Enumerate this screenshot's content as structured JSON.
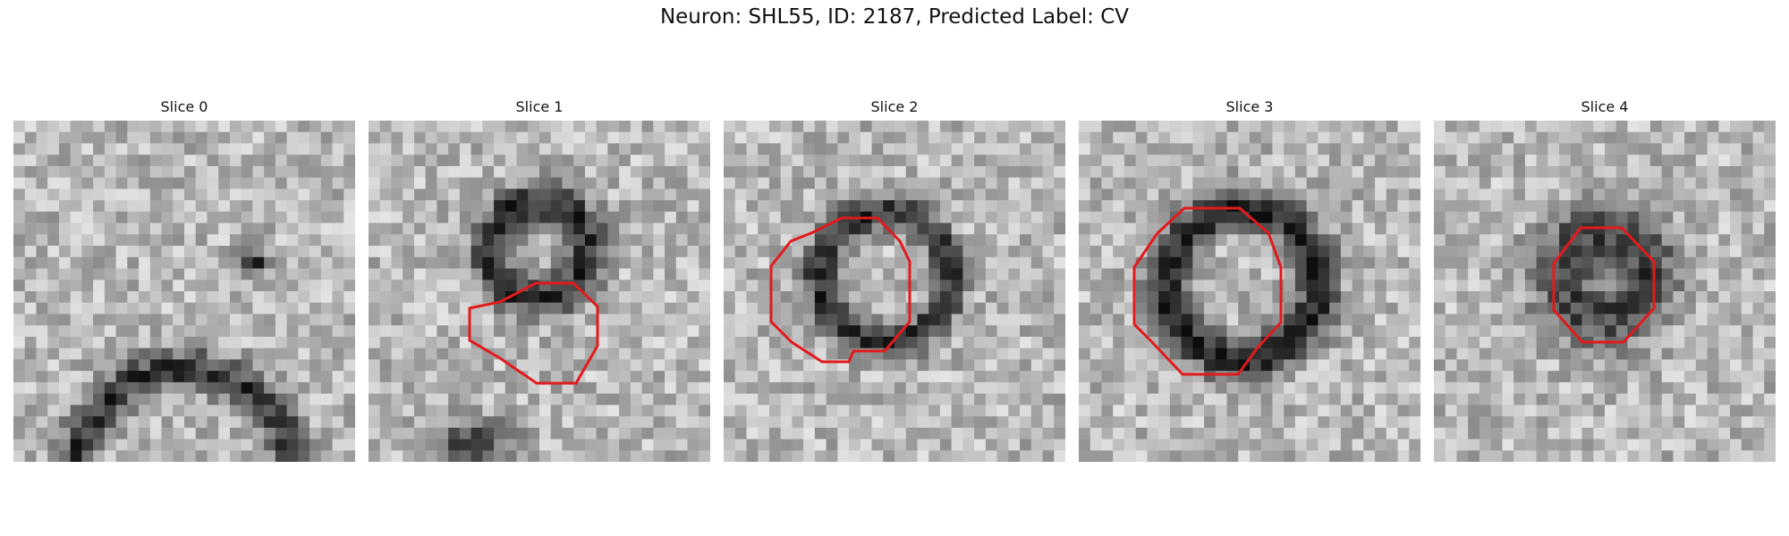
{
  "figure": {
    "title": "Neuron: SHL55, ID: 2187, Predicted Label: CV"
  },
  "panels": [
    {
      "title": "Slice 0",
      "has_contour": false
    },
    {
      "title": "Slice 1",
      "has_contour": true
    },
    {
      "title": "Slice 2",
      "has_contour": true
    },
    {
      "title": "Slice 3",
      "has_contour": true
    },
    {
      "title": "Slice 4",
      "has_contour": true
    }
  ],
  "colors": {
    "contour": "#e31a1c",
    "background": "#ffffff"
  },
  "image": {
    "colormap": "grayscale",
    "pixel_grid": "30x30"
  }
}
